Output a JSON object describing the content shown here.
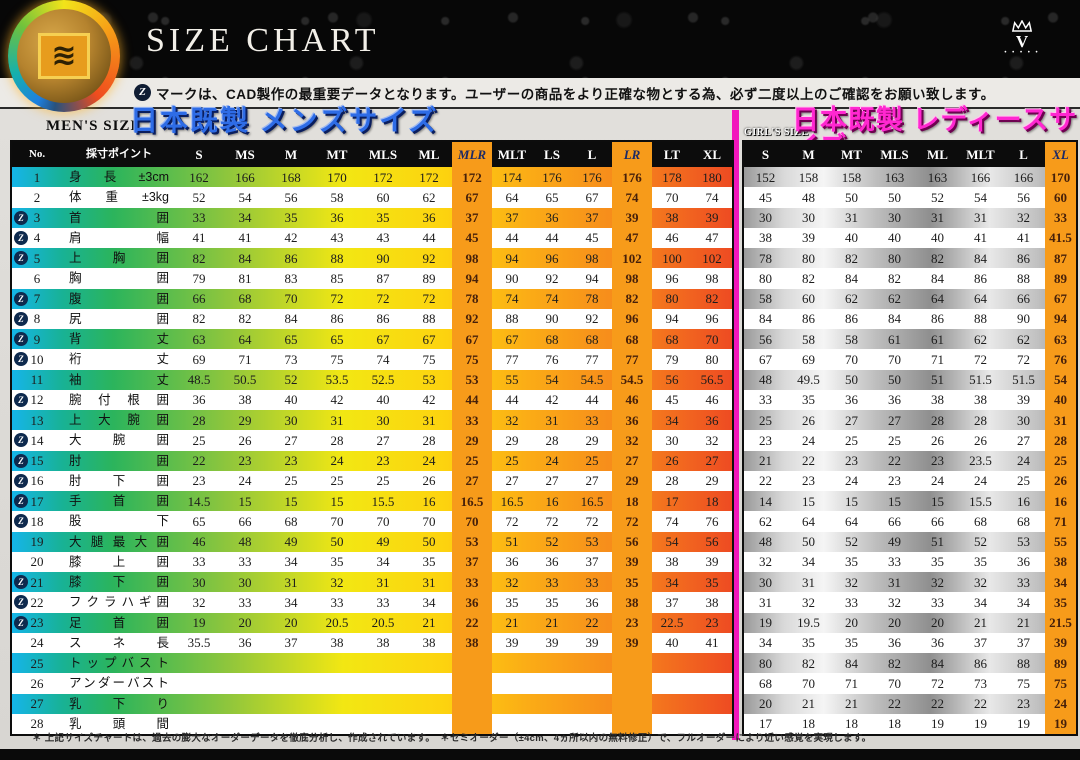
{
  "header": {
    "title": "SIZE CHART",
    "note": "マークは、CAD製作の最重要データとなります。ユーザーの商品をより正確な物とする為、必ず二度以上のご確認をお願い致します。",
    "z_mark_glyph": "Z",
    "brand_logo_icon": "wave-sun-logo",
    "crown_logo_icon": "crown-v-logo",
    "crown_letter": "V",
    "crown_dots": "• • • • •"
  },
  "mens": {
    "size_label": "MEN'S SIZE",
    "title": "日本既製 メンズサイズ",
    "no_header": "No.",
    "point_header": "採寸ポイント",
    "columns": [
      "S",
      "MS",
      "M",
      "MT",
      "MLS",
      "ML",
      "MLR",
      "MLT",
      "LS",
      "L",
      "LR",
      "LT",
      "XL"
    ],
    "highlight_columns": [
      "MLR",
      "LR"
    ]
  },
  "girls": {
    "size_label": "GIRL'S SIZE",
    "title": "日本既製 レディースサイズ",
    "columns": [
      "S",
      "M",
      "MT",
      "MLS",
      "ML",
      "MLT",
      "L",
      "XL"
    ],
    "highlight_columns": [
      "XL"
    ]
  },
  "rows": [
    {
      "no": 1,
      "label": "身長±3cm",
      "mark": false,
      "mens": [
        162,
        166,
        168,
        170,
        172,
        172,
        172,
        174,
        176,
        176,
        176,
        178,
        180
      ],
      "girls": [
        152,
        158,
        158,
        163,
        163,
        166,
        166,
        170
      ]
    },
    {
      "no": 2,
      "label": "体重±3kg",
      "mark": false,
      "mens": [
        52,
        54,
        56,
        58,
        60,
        62,
        67,
        64,
        65,
        67,
        74,
        70,
        74
      ],
      "girls": [
        45,
        48,
        50,
        50,
        52,
        54,
        56,
        60
      ]
    },
    {
      "no": 3,
      "label": "首囲",
      "mark": true,
      "mens": [
        33,
        34,
        35,
        36,
        35,
        36,
        37,
        37,
        36,
        37,
        39,
        38,
        39
      ],
      "girls": [
        30,
        30,
        31,
        30,
        31,
        31,
        32,
        33
      ]
    },
    {
      "no": 4,
      "label": "肩幅",
      "mark": true,
      "mens": [
        41,
        41,
        42,
        43,
        43,
        44,
        45,
        44,
        44,
        45,
        47,
        46,
        47
      ],
      "girls": [
        38,
        39,
        40,
        40,
        40,
        41,
        41,
        41.5
      ]
    },
    {
      "no": 5,
      "label": "上胸囲",
      "mark": true,
      "mens": [
        82,
        84,
        86,
        88,
        90,
        92,
        98,
        94,
        96,
        98,
        102,
        100,
        102
      ],
      "girls": [
        78,
        80,
        82,
        80,
        82,
        84,
        86,
        87
      ]
    },
    {
      "no": 6,
      "label": "胸囲",
      "mark": false,
      "mens": [
        79,
        81,
        83,
        85,
        87,
        89,
        94,
        90,
        92,
        94,
        98,
        96,
        98
      ],
      "girls": [
        80,
        82,
        84,
        82,
        84,
        86,
        88,
        89
      ]
    },
    {
      "no": 7,
      "label": "腹囲",
      "mark": true,
      "mens": [
        66,
        68,
        70,
        72,
        72,
        72,
        78,
        74,
        74,
        78,
        82,
        80,
        82
      ],
      "girls": [
        58,
        60,
        62,
        62,
        64,
        64,
        66,
        67
      ]
    },
    {
      "no": 8,
      "label": "尻囲",
      "mark": true,
      "mens": [
        82,
        82,
        84,
        86,
        86,
        88,
        92,
        88,
        90,
        92,
        96,
        94,
        96
      ],
      "girls": [
        84,
        86,
        86,
        84,
        86,
        88,
        90,
        94
      ]
    },
    {
      "no": 9,
      "label": "背丈",
      "mark": true,
      "mens": [
        63,
        64,
        65,
        65,
        67,
        67,
        67,
        67,
        68,
        68,
        68,
        68,
        70
      ],
      "girls": [
        56,
        58,
        58,
        61,
        61,
        62,
        62,
        63
      ]
    },
    {
      "no": 10,
      "label": "裄丈",
      "mark": true,
      "mens": [
        69,
        71,
        73,
        75,
        74,
        75,
        75,
        77,
        76,
        77,
        77,
        79,
        80
      ],
      "girls": [
        67,
        69,
        70,
        70,
        71,
        72,
        72,
        76
      ]
    },
    {
      "no": 11,
      "label": "袖丈",
      "mark": false,
      "mens": [
        48.5,
        50.5,
        52,
        53.5,
        52.5,
        53,
        53,
        55,
        54,
        54.5,
        54.5,
        56,
        56.5
      ],
      "girls": [
        48,
        49.5,
        50,
        50,
        51,
        51.5,
        51.5,
        54
      ]
    },
    {
      "no": 12,
      "label": "腕付根囲",
      "mark": true,
      "mens": [
        36,
        38,
        40,
        42,
        40,
        42,
        44,
        44,
        42,
        44,
        46,
        45,
        46
      ],
      "girls": [
        33,
        35,
        36,
        36,
        38,
        38,
        39,
        40
      ]
    },
    {
      "no": 13,
      "label": "上大腕囲",
      "mark": false,
      "mens": [
        28,
        29,
        30,
        31,
        30,
        31,
        33,
        32,
        31,
        33,
        36,
        34,
        36
      ],
      "girls": [
        25,
        26,
        27,
        27,
        28,
        28,
        30,
        31
      ]
    },
    {
      "no": 14,
      "label": "大腕囲",
      "mark": true,
      "mens": [
        25,
        26,
        27,
        28,
        27,
        28,
        29,
        29,
        28,
        29,
        32,
        30,
        32
      ],
      "girls": [
        23,
        24,
        25,
        25,
        26,
        26,
        27,
        28
      ]
    },
    {
      "no": 15,
      "label": "肘囲",
      "mark": true,
      "mens": [
        22,
        23,
        23,
        24,
        23,
        24,
        25,
        25,
        24,
        25,
        27,
        26,
        27
      ],
      "girls": [
        21,
        22,
        23,
        22,
        23,
        23.5,
        24,
        25
      ]
    },
    {
      "no": 16,
      "label": "肘下囲",
      "mark": true,
      "mens": [
        23,
        24,
        25,
        25,
        25,
        26,
        27,
        27,
        27,
        27,
        29,
        28,
        29
      ],
      "girls": [
        22,
        23,
        24,
        23,
        24,
        24,
        25,
        26
      ]
    },
    {
      "no": 17,
      "label": "手首囲",
      "mark": true,
      "mens": [
        14.5,
        15,
        15,
        15,
        15.5,
        16,
        16.5,
        16.5,
        16,
        16.5,
        18,
        17,
        18
      ],
      "girls": [
        14,
        15,
        15,
        15,
        15,
        15.5,
        16,
        16
      ]
    },
    {
      "no": 18,
      "label": "股下",
      "mark": true,
      "mens": [
        65,
        66,
        68,
        70,
        70,
        70,
        70,
        72,
        72,
        72,
        72,
        74,
        76
      ],
      "girls": [
        62,
        64,
        64,
        66,
        66,
        68,
        68,
        71
      ]
    },
    {
      "no": 19,
      "label": "大腿最大囲",
      "mark": false,
      "mens": [
        46,
        48,
        49,
        50,
        49,
        50,
        53,
        51,
        52,
        53,
        56,
        54,
        56
      ],
      "girls": [
        48,
        50,
        52,
        49,
        51,
        52,
        53,
        55
      ]
    },
    {
      "no": 20,
      "label": "膝上囲",
      "mark": false,
      "mens": [
        33,
        33,
        34,
        35,
        34,
        35,
        37,
        36,
        36,
        37,
        39,
        38,
        39
      ],
      "girls": [
        32,
        34,
        35,
        33,
        35,
        35,
        36,
        38
      ]
    },
    {
      "no": 21,
      "label": "膝下囲",
      "mark": true,
      "mens": [
        30,
        30,
        31,
        32,
        31,
        31,
        33,
        32,
        33,
        33,
        35,
        34,
        35
      ],
      "girls": [
        30,
        31,
        32,
        31,
        32,
        32,
        33,
        34
      ]
    },
    {
      "no": 22,
      "label": "フクラハギ囲",
      "mark": true,
      "mens": [
        32,
        33,
        34,
        33,
        33,
        34,
        36,
        35,
        35,
        36,
        38,
        37,
        38
      ],
      "girls": [
        31,
        32,
        33,
        32,
        33,
        34,
        34,
        35
      ]
    },
    {
      "no": 23,
      "label": "足首囲",
      "mark": true,
      "mens": [
        19,
        20,
        20,
        20.5,
        20.5,
        21,
        22,
        21,
        21,
        22,
        23,
        22.5,
        23
      ],
      "girls": [
        19,
        19.5,
        20,
        20,
        20,
        21,
        21,
        21.5
      ]
    },
    {
      "no": 24,
      "label": "スネ長",
      "mark": false,
      "mens": [
        35.5,
        36,
        37,
        38,
        38,
        38,
        38,
        39,
        39,
        39,
        39,
        40,
        41
      ],
      "girls": [
        34,
        35,
        35,
        36,
        36,
        37,
        37,
        39
      ]
    },
    {
      "no": 25,
      "label": "トップバスト",
      "mark": false,
      "mens": [],
      "girls": [
        80,
        82,
        84,
        82,
        84,
        86,
        88,
        89
      ]
    },
    {
      "no": 26,
      "label": "アンダーバスト",
      "mark": false,
      "mens": [],
      "girls": [
        68,
        70,
        71,
        70,
        72,
        73,
        75,
        75
      ]
    },
    {
      "no": 27,
      "label": "乳下り",
      "mark": false,
      "mens": [],
      "girls": [
        20,
        21,
        21,
        22,
        22,
        22,
        23,
        24
      ]
    },
    {
      "no": 28,
      "label": "乳頭間",
      "mark": false,
      "mens": [],
      "girls": [
        17,
        18,
        18,
        18,
        19,
        19,
        19,
        19
      ]
    }
  ],
  "footnote": "＊ 上記サイズチャートは、過去の膨大なオーダーデータを徹底分析し、作成されています。　＊セミオーダー（±4cm、4ヵ所以内の無料修正）で、フルオーダーにより近い感覚を実現します。",
  "colors": {
    "accent_blue": "#2e6ce6",
    "accent_magenta": "#f216bc",
    "highlight_orange": "#f79b1a",
    "band_gradient": [
      "#15b5e9",
      "#2bb45c",
      "#8fc63c",
      "#f2e713",
      "#fdb813",
      "#f6881c",
      "#ee4b22"
    ],
    "girls_band_silver": [
      "#9a9a9a",
      "#f5f5f5",
      "#8f8f8f",
      "#e8e8e8"
    ]
  }
}
